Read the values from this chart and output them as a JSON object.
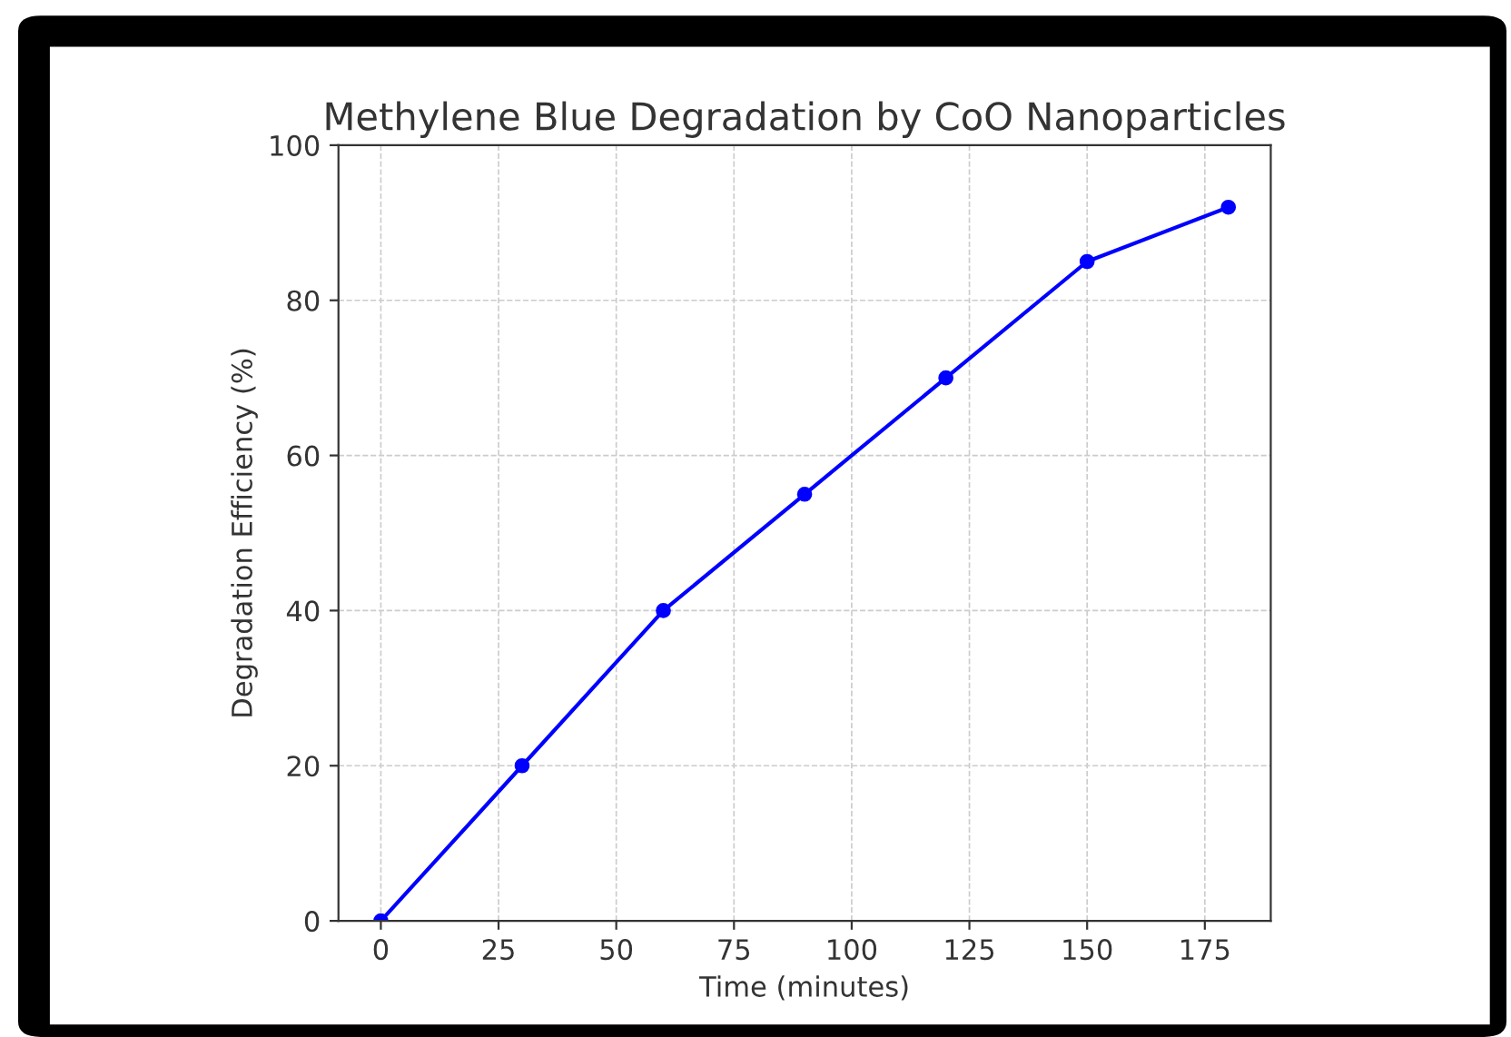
{
  "chart_data": {
    "type": "line",
    "title": "Methylene Blue Degradation by CoO Nanoparticles",
    "xlabel": "Time (minutes)",
    "ylabel": "Degradation Efficiency (%)",
    "x": [
      0,
      30,
      60,
      90,
      120,
      150,
      180
    ],
    "series": [
      {
        "color": "#0000ff",
        "values": [
          0,
          20,
          40,
          55,
          70,
          85,
          92
        ]
      }
    ],
    "xlim": [
      -9,
      189
    ],
    "xticks": [
      0,
      25,
      50,
      75,
      100,
      125,
      150,
      175
    ],
    "ylim": [
      0,
      100
    ],
    "yticks": [
      0,
      20,
      40,
      60,
      80,
      100
    ],
    "grid": true,
    "marker": "circle",
    "line_style": "solid"
  }
}
